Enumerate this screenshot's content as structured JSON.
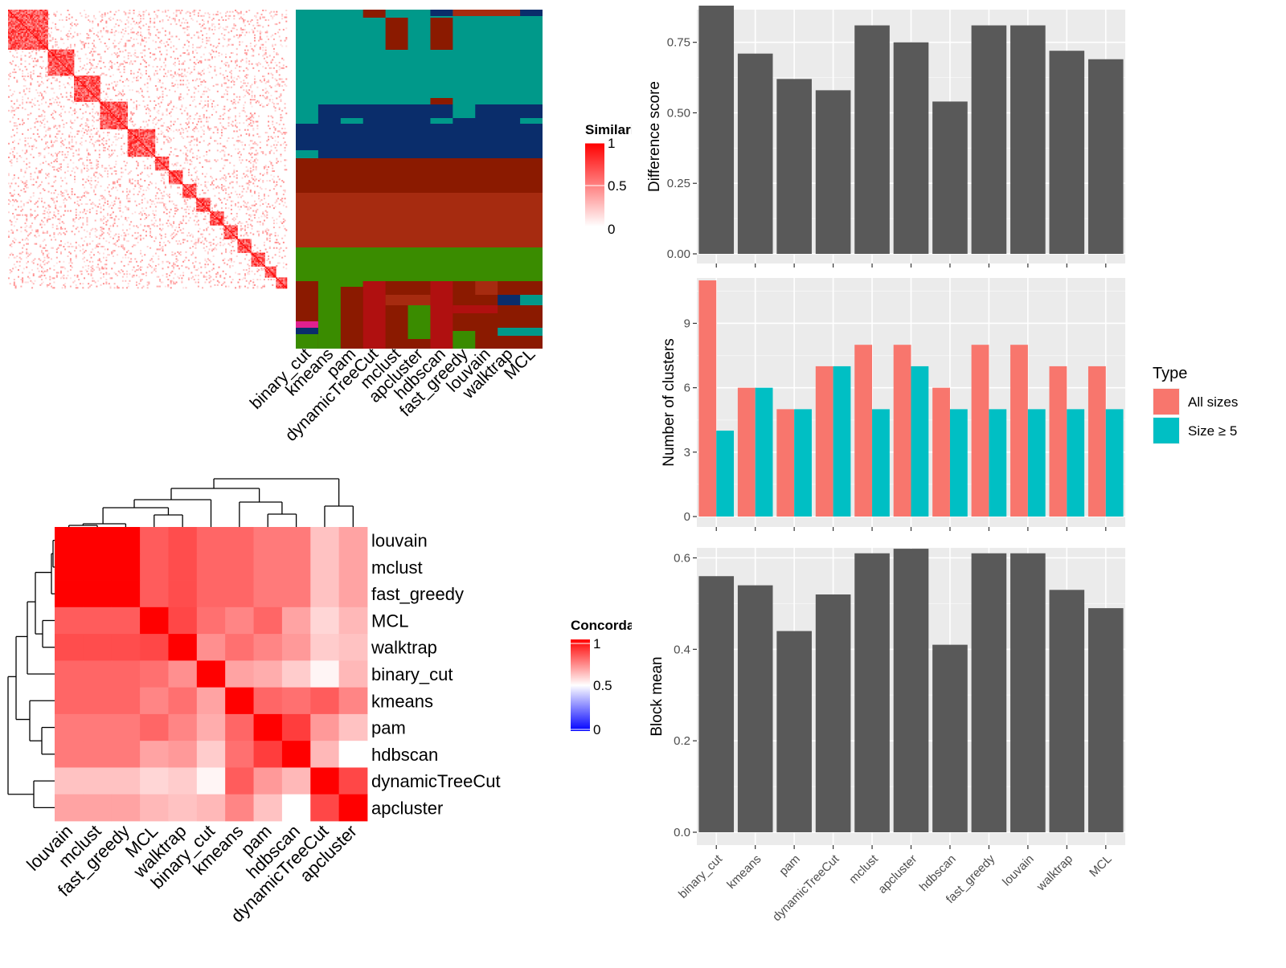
{
  "chart_data": [
    {
      "type": "heatmap",
      "title": "",
      "legend": {
        "title": "Similarity",
        "ticks": [
          "1",
          "0.5",
          "0"
        ],
        "low_color": "#ffffff",
        "high_color": "#ff0000"
      }
    },
    {
      "type": "heatmap",
      "title": "",
      "columns": [
        "binary_cut",
        "kmeans",
        "pam",
        "dynamicTreeCut",
        "mclust",
        "apcluster",
        "hdbscan",
        "fast_greedy",
        "louvain",
        "walktrap",
        "MCL"
      ],
      "colors": {
        "teal": "#00998a",
        "navy": "#0a2d6b",
        "darkred": "#8b1a00",
        "brick": "#a62b10",
        "green": "#3a8c00",
        "red": "#b01010",
        "magenta": "#e0208f"
      }
    },
    {
      "type": "heatmap",
      "title": "",
      "legend": {
        "title": "Concordance",
        "ticks": [
          "1",
          "0.5",
          "0"
        ],
        "low_color": "#0000ff",
        "mid_color": "#ffffff",
        "high_color": "#ff0000"
      },
      "methods": [
        "louvain",
        "mclust",
        "fast_greedy",
        "MCL",
        "walktrap",
        "binary_cut",
        "kmeans",
        "pam",
        "hdbscan",
        "dynamicTreeCut",
        "apcluster"
      ],
      "matrix": [
        [
          1.0,
          1.0,
          1.0,
          0.82,
          0.85,
          0.8,
          0.8,
          0.76,
          0.76,
          0.62,
          0.68
        ],
        [
          1.0,
          1.0,
          1.0,
          0.82,
          0.85,
          0.8,
          0.8,
          0.76,
          0.76,
          0.62,
          0.68
        ],
        [
          1.0,
          1.0,
          1.0,
          0.82,
          0.85,
          0.8,
          0.8,
          0.76,
          0.76,
          0.62,
          0.68
        ],
        [
          0.82,
          0.82,
          0.82,
          1.0,
          0.86,
          0.78,
          0.74,
          0.8,
          0.68,
          0.58,
          0.64
        ],
        [
          0.85,
          0.85,
          0.85,
          0.86,
          1.0,
          0.72,
          0.78,
          0.74,
          0.7,
          0.6,
          0.62
        ],
        [
          0.8,
          0.8,
          0.8,
          0.78,
          0.72,
          1.0,
          0.68,
          0.66,
          0.6,
          0.52,
          0.64
        ],
        [
          0.8,
          0.8,
          0.8,
          0.74,
          0.78,
          0.68,
          1.0,
          0.8,
          0.78,
          0.82,
          0.74
        ],
        [
          0.76,
          0.76,
          0.76,
          0.8,
          0.74,
          0.66,
          0.8,
          1.0,
          0.88,
          0.7,
          0.62
        ],
        [
          0.76,
          0.76,
          0.76,
          0.68,
          0.7,
          0.6,
          0.78,
          0.88,
          1.0,
          0.64,
          0.5
        ],
        [
          0.62,
          0.62,
          0.62,
          0.58,
          0.6,
          0.52,
          0.82,
          0.7,
          0.64,
          1.0,
          0.86
        ],
        [
          0.68,
          0.68,
          0.68,
          0.64,
          0.62,
          0.64,
          0.74,
          0.62,
          0.5,
          0.86,
          1.0
        ]
      ]
    },
    {
      "type": "bar",
      "title": "",
      "xlabel": "",
      "ylabel": "Difference score",
      "categories": [
        "binary_cut",
        "kmeans",
        "pam",
        "dynamicTreeCut",
        "mclust",
        "apcluster",
        "hdbscan",
        "fast_greedy",
        "louvain",
        "walktrap",
        "MCL"
      ],
      "values": [
        0.88,
        0.71,
        0.62,
        0.58,
        0.81,
        0.75,
        0.54,
        0.81,
        0.81,
        0.72,
        0.69
      ],
      "ylim": [
        0,
        0.9
      ],
      "yticks": [
        "0.00",
        "0.25",
        "0.50",
        "0.75"
      ],
      "bar_color": "#595959"
    },
    {
      "type": "bar",
      "title": "",
      "xlabel": "",
      "ylabel": "Number of clusters",
      "categories": [
        "binary_cut",
        "kmeans",
        "pam",
        "dynamicTreeCut",
        "mclust",
        "apcluster",
        "hdbscan",
        "fast_greedy",
        "louvain",
        "walktrap",
        "MCL"
      ],
      "series": [
        {
          "name": "All sizes",
          "values": [
            11,
            6,
            5,
            7,
            8,
            8,
            6,
            8,
            8,
            7,
            7
          ],
          "color": "#f8766d"
        },
        {
          "name": "Size ≥ 5",
          "values": [
            4,
            6,
            5,
            7,
            5,
            7,
            5,
            5,
            5,
            5,
            5
          ],
          "color": "#00bfc4"
        }
      ],
      "ylim": [
        0,
        11.6
      ],
      "yticks": [
        "0",
        "3",
        "6",
        "9"
      ],
      "legend": {
        "title": "Type",
        "placement": "right"
      }
    },
    {
      "type": "bar",
      "title": "",
      "xlabel": "",
      "ylabel": "Block mean",
      "categories": [
        "binary_cut",
        "kmeans",
        "pam",
        "dynamicTreeCut",
        "mclust",
        "apcluster",
        "hdbscan",
        "fast_greedy",
        "louvain",
        "walktrap",
        "MCL"
      ],
      "values": [
        0.56,
        0.54,
        0.44,
        0.52,
        0.61,
        0.62,
        0.41,
        0.61,
        0.61,
        0.53,
        0.49
      ],
      "ylim": [
        0,
        0.65
      ],
      "yticks": [
        "0.0",
        "0.2",
        "0.4",
        "0.6"
      ],
      "bar_color": "#595959"
    }
  ]
}
